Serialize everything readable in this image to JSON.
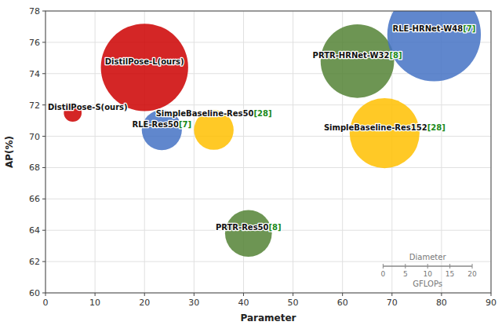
{
  "chart_data": {
    "type": "bubble",
    "xlabel": "Parameter",
    "ylabel": "AP(%)",
    "xlim": [
      0,
      90
    ],
    "ylim": [
      60,
      78
    ],
    "xticks": [
      0,
      10,
      20,
      30,
      40,
      50,
      60,
      70,
      80,
      90
    ],
    "yticks": [
      60,
      62,
      64,
      66,
      68,
      70,
      72,
      74,
      76,
      78
    ],
    "grid": true,
    "x": [
      20,
      5.5,
      23.5,
      34.0,
      41.0,
      63.0,
      68.5,
      78.5
    ],
    "values": [
      74.4,
      71.5,
      70.4,
      70.4,
      63.8,
      74.8,
      70.2,
      76.5
    ],
    "sizes": [
      19.6,
      4.0,
      9.0,
      8.9,
      10.5,
      16.5,
      15.7,
      21.0
    ],
    "colors": [
      "#CC0000",
      "#CC0000",
      "#4472C4",
      "#FFC000",
      "#548235",
      "#548235",
      "#FFC000",
      "#4472C4"
    ],
    "labels": [
      "DistilPose-L(ours)",
      "DistilPose-S(ours)",
      "RLE-Res50",
      "SimpleBaseline-Res50",
      "PRTR-Res50",
      "PRTR-HRNet-W32",
      "SimpleBaseline-Res152",
      "RLE-HRNet-W48"
    ],
    "label_refs": [
      null,
      null,
      "[7]",
      "[28]",
      "[8]",
      "[8]",
      "[28]",
      "[7]"
    ],
    "size_legend": {
      "title": "Diameter",
      "ticks": [
        0,
        5,
        10,
        15,
        20
      ],
      "label": "GFLOPs"
    }
  }
}
